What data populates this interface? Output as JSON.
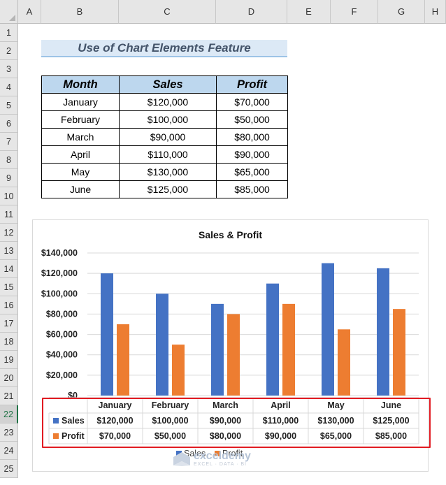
{
  "spreadsheet": {
    "columns": [
      "A",
      "B",
      "C",
      "D",
      "E",
      "F",
      "G",
      "H"
    ],
    "rows": [
      "1",
      "2",
      "3",
      "4",
      "5",
      "6",
      "7",
      "8",
      "9",
      "10",
      "11",
      "12",
      "13",
      "14",
      "15",
      "16",
      "17",
      "18",
      "19",
      "20",
      "21",
      "22",
      "23",
      "24",
      "25"
    ],
    "selected_row": "22"
  },
  "sheet_title": "Use of Chart Elements Feature",
  "table": {
    "headers": [
      "Month",
      "Sales",
      "Profit"
    ],
    "rows": [
      [
        "January",
        "$120,000",
        "$70,000"
      ],
      [
        "February",
        "$100,000",
        "$50,000"
      ],
      [
        "March",
        "$90,000",
        "$80,000"
      ],
      [
        "April",
        "$110,000",
        "$90,000"
      ],
      [
        "May",
        "$130,000",
        "$65,000"
      ],
      [
        "June",
        "$125,000",
        "$85,000"
      ]
    ]
  },
  "chart_data": {
    "type": "bar",
    "title": "Sales & Profit",
    "categories": [
      "January",
      "February",
      "March",
      "April",
      "May",
      "June"
    ],
    "series": [
      {
        "name": "Sales",
        "color": "#4472c4",
        "values": [
          120000,
          100000,
          90000,
          110000,
          130000,
          125000
        ],
        "labels": [
          "$120,000",
          "$100,000",
          "$90,000",
          "$110,000",
          "$130,000",
          "$125,000"
        ]
      },
      {
        "name": "Profit",
        "color": "#ed7d31",
        "values": [
          70000,
          50000,
          80000,
          90000,
          65000,
          85000
        ],
        "labels": [
          "$70,000",
          "$50,000",
          "$80,000",
          "$90,000",
          "$65,000",
          "$85,000"
        ]
      }
    ],
    "ylim": [
      0,
      140000
    ],
    "yticks": [
      "$0",
      "$20,000",
      "$40,000",
      "$60,000",
      "$80,000",
      "$100,000",
      "$120,000",
      "$140,000"
    ],
    "grid": true,
    "legend": "bottom",
    "data_table": true
  },
  "watermark": {
    "name": "exceldemy",
    "tag": "EXCEL · DATA · BI"
  }
}
